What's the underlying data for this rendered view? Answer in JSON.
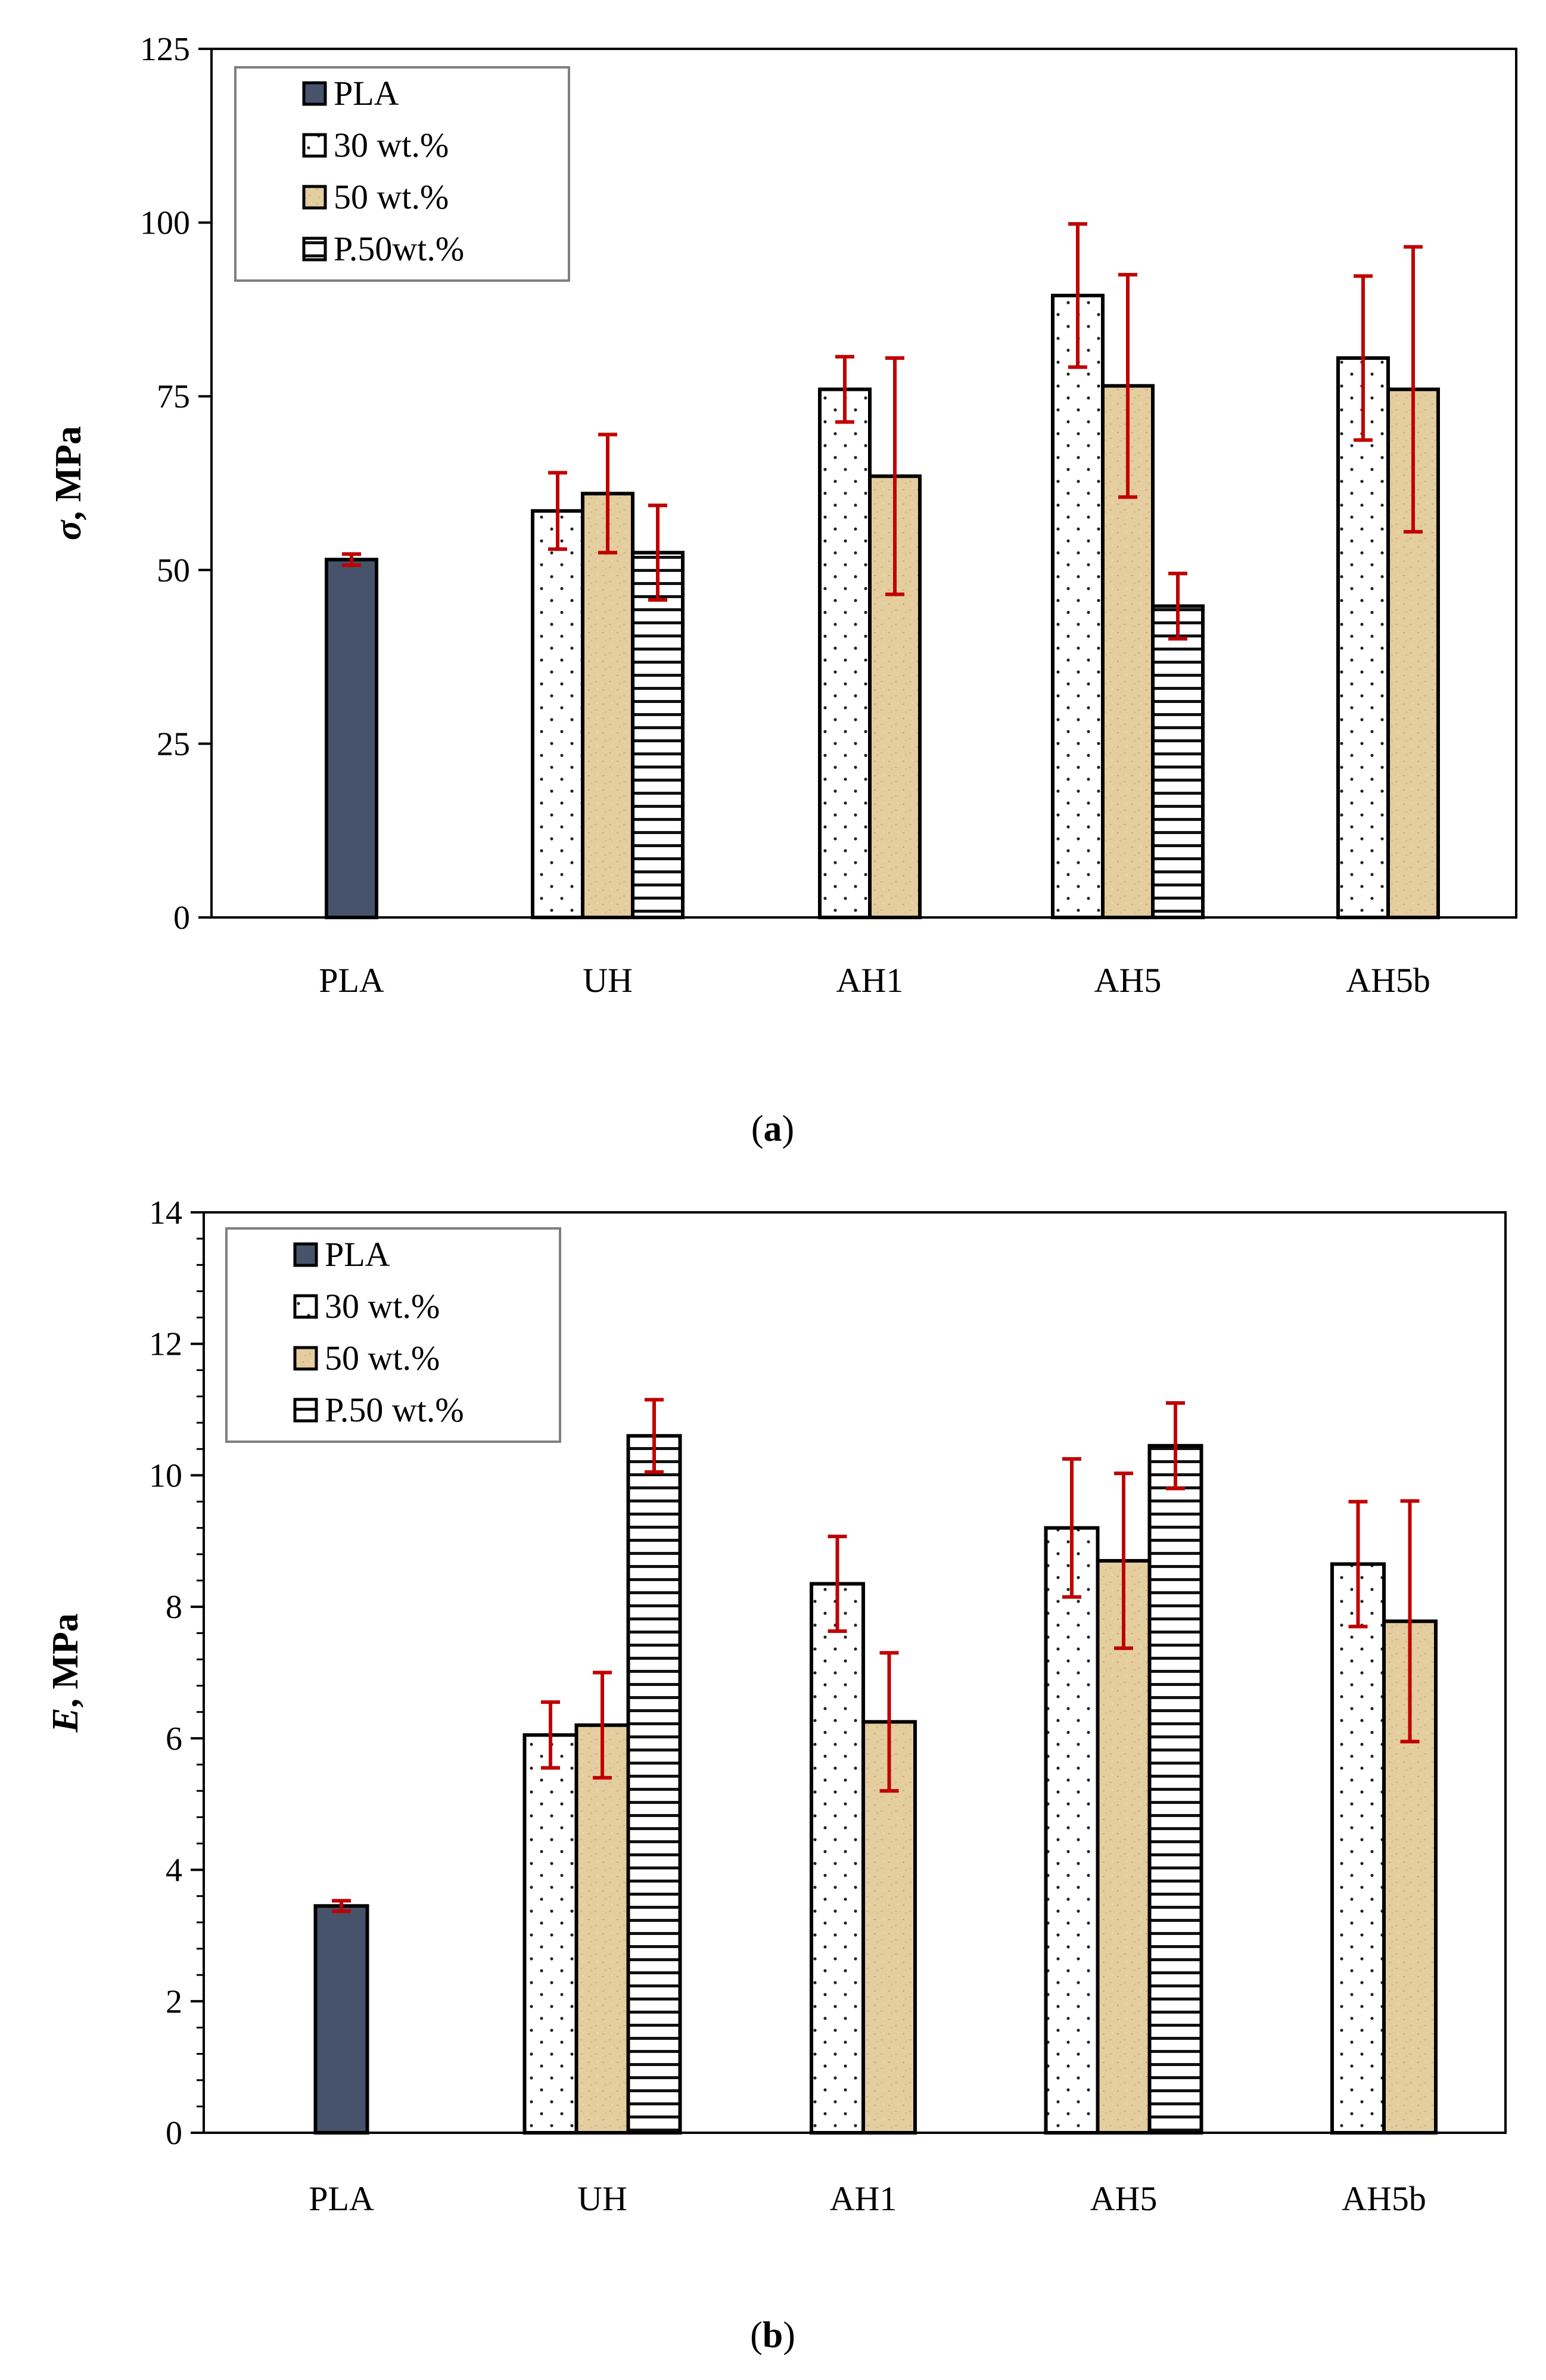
{
  "chart_data": [
    {
      "type": "bar",
      "panel": "a",
      "caption_letter": "a",
      "ylabel_symbol": "σ",
      "ylabel_unit": ", MPa",
      "ylim": [
        0,
        125
      ],
      "yticks": [
        0,
        25,
        50,
        75,
        100,
        125
      ],
      "ytick_labels": [
        "0",
        "25",
        "50",
        "75",
        "100",
        "125"
      ],
      "minor_ticks": false,
      "legend_position": "top-left",
      "categories": [
        "PLA",
        "UH",
        "AH1",
        "AH5",
        "AH5b"
      ],
      "series": [
        {
          "name": "PLA",
          "pattern": "solid-dark",
          "values": [
            51.5,
            null,
            null,
            null,
            null
          ],
          "errors": [
            0.8,
            null,
            null,
            null,
            null
          ]
        },
        {
          "name": "30 wt.%",
          "pattern": "dots",
          "values": [
            null,
            58.5,
            76,
            89.5,
            80.5
          ],
          "errors": [
            null,
            5.5,
            4.7,
            10.3,
            11.8
          ]
        },
        {
          "name": "50 wt.%",
          "pattern": "tan",
          "values": [
            null,
            61,
            63.5,
            76.5,
            76
          ],
          "errors": [
            null,
            8.5,
            17,
            16,
            20.5
          ]
        },
        {
          "name": "P.50wt.%",
          "pattern": "hstripes",
          "values": [
            null,
            52.5,
            null,
            44.8,
            null
          ],
          "errors": [
            null,
            6.8,
            null,
            4.7,
            null
          ]
        }
      ]
    },
    {
      "type": "bar",
      "panel": "b",
      "caption_letter": "b",
      "ylabel_symbol": "E",
      "ylabel_unit": ", MPa",
      "ylim": [
        0,
        14
      ],
      "yticks": [
        0,
        2,
        4,
        6,
        8,
        10,
        12,
        14
      ],
      "ytick_labels": [
        "0",
        "2",
        "4",
        "6",
        "8",
        "10",
        "12",
        "14"
      ],
      "minor_ticks": true,
      "legend_position": "top-left",
      "categories": [
        "PLA",
        "UH",
        "AH1",
        "AH5",
        "AH5b"
      ],
      "series": [
        {
          "name": "PLA",
          "pattern": "solid-dark",
          "values": [
            3.45,
            null,
            null,
            null,
            null
          ],
          "errors": [
            0.08,
            null,
            null,
            null,
            null
          ]
        },
        {
          "name": "30 wt.%",
          "pattern": "dots",
          "values": [
            null,
            6.05,
            8.35,
            9.2,
            8.65
          ],
          "errors": [
            null,
            0.5,
            0.72,
            1.05,
            0.95
          ]
        },
        {
          "name": "50 wt.%",
          "pattern": "tan",
          "values": [
            null,
            6.2,
            6.25,
            8.7,
            7.78
          ],
          "errors": [
            null,
            0.8,
            1.05,
            1.33,
            1.83
          ]
        },
        {
          "name": "P.50 wt.%",
          "pattern": "hstripes",
          "values": [
            null,
            10.6,
            null,
            10.45,
            null
          ],
          "errors": [
            null,
            0.55,
            null,
            0.65,
            null
          ]
        }
      ]
    }
  ],
  "colors": {
    "pla_fill": "#46536b",
    "tan_fill": "#e4cd9e",
    "tan_speck": "#c9ad74",
    "error_bar": "#c00000",
    "axis": "#000000",
    "legend_border": "#7f7f7f"
  }
}
